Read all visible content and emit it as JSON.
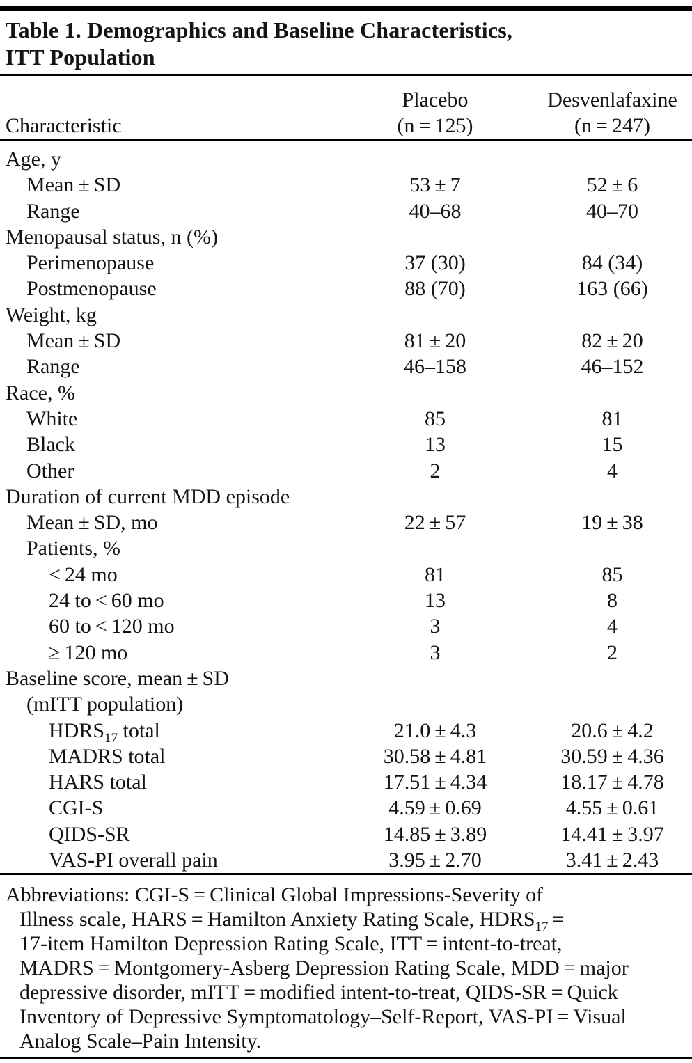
{
  "page": {
    "background": "#ffffff",
    "text_color": "#141414",
    "rule_color": "#000000"
  },
  "title": {
    "line1": "Table 1. Demographics and Baseline Characteristics,",
    "line2": "ITT Population"
  },
  "header": {
    "characteristic_label": "Characteristic",
    "columns": [
      {
        "name": "Placebo",
        "n_label": "(n = 125)"
      },
      {
        "name": "Desvenlafaxine",
        "n_label": "(n = 247)"
      }
    ]
  },
  "table": {
    "rows": [
      {
        "label": "Age, y",
        "indent": 0,
        "placebo": "",
        "desvenlafaxine": ""
      },
      {
        "label": "Mean ± SD",
        "indent": 1,
        "placebo": "53 ± 7",
        "desvenlafaxine": "52 ± 6"
      },
      {
        "label": "Range",
        "indent": 1,
        "placebo": "40–68",
        "desvenlafaxine": "40–70"
      },
      {
        "label": "Menopausal status, n (%)",
        "indent": 0,
        "placebo": "",
        "desvenlafaxine": ""
      },
      {
        "label": "Perimenopause",
        "indent": 1,
        "placebo": "37 (30)",
        "desvenlafaxine": "84 (34)"
      },
      {
        "label": "Postmenopause",
        "indent": 1,
        "placebo": "88 (70)",
        "desvenlafaxine": "163 (66)"
      },
      {
        "label": "Weight, kg",
        "indent": 0,
        "placebo": "",
        "desvenlafaxine": ""
      },
      {
        "label": "Mean ± SD",
        "indent": 1,
        "placebo": "81 ± 20",
        "desvenlafaxine": "82 ± 20"
      },
      {
        "label": "Range",
        "indent": 1,
        "placebo": "46–158",
        "desvenlafaxine": "46–152"
      },
      {
        "label": "Race, %",
        "indent": 0,
        "placebo": "",
        "desvenlafaxine": ""
      },
      {
        "label": "White",
        "indent": 1,
        "placebo": "85",
        "desvenlafaxine": "81"
      },
      {
        "label": "Black",
        "indent": 1,
        "placebo": "13",
        "desvenlafaxine": "15"
      },
      {
        "label": "Other",
        "indent": 1,
        "placebo": "2",
        "desvenlafaxine": "4"
      },
      {
        "label": "Duration of current MDD episode",
        "indent": 0,
        "placebo": "",
        "desvenlafaxine": ""
      },
      {
        "label": "Mean ± SD, mo",
        "indent": 1,
        "placebo": "22 ± 57",
        "desvenlafaxine": "19 ± 38"
      },
      {
        "label": "Patients, %",
        "indent": 1,
        "placebo": "",
        "desvenlafaxine": ""
      },
      {
        "label": "< 24 mo",
        "indent": 2,
        "placebo": "81",
        "desvenlafaxine": "85"
      },
      {
        "label": "24 to < 60 mo",
        "indent": 2,
        "placebo": "13",
        "desvenlafaxine": "8"
      },
      {
        "label": "60 to < 120 mo",
        "indent": 2,
        "placebo": "3",
        "desvenlafaxine": "4"
      },
      {
        "label": "≥ 120 mo",
        "indent": 2,
        "placebo": "3",
        "desvenlafaxine": "2"
      },
      {
        "label": "Baseline score, mean ± SD",
        "indent": 0,
        "placebo": "",
        "desvenlafaxine": ""
      },
      {
        "label": "(mITT population)",
        "indent": 1,
        "placebo": "",
        "desvenlafaxine": ""
      },
      {
        "label": "HDRS",
        "label_sub": "17",
        "label_rest": " total",
        "indent": 2,
        "placebo": "21.0 ± 4.3",
        "desvenlafaxine": "20.6 ± 4.2"
      },
      {
        "label": "MADRS total",
        "indent": 2,
        "placebo": "30.58 ± 4.81",
        "desvenlafaxine": "30.59 ± 4.36"
      },
      {
        "label": "HARS total",
        "indent": 2,
        "placebo": "17.51 ± 4.34",
        "desvenlafaxine": "18.17 ± 4.78"
      },
      {
        "label": "CGI-S",
        "indent": 2,
        "placebo": "4.59 ± 0.69",
        "desvenlafaxine": "4.55 ± 0.61"
      },
      {
        "label": "QIDS-SR",
        "indent": 2,
        "placebo": "14.85 ± 3.89",
        "desvenlafaxine": "14.41 ± 3.97"
      },
      {
        "label": "VAS-PI overall pain",
        "indent": 2,
        "placebo": "3.95 ± 2.70",
        "desvenlafaxine": "3.41 ± 2.43"
      }
    ]
  },
  "footnote": {
    "lines": [
      {
        "text": "Abbreviations: CGI-S = Clinical Global Impressions-Severity of",
        "indent": false
      },
      {
        "text": "Illness scale, HARS = Hamilton Anxiety Rating Scale, HDRS",
        "sub": "17",
        "rest": " =",
        "indent": true
      },
      {
        "text": "17-item Hamilton Depression Rating Scale, ITT = intent-to-treat,",
        "indent": true
      },
      {
        "text": "MADRS = Montgomery-Asberg Depression Rating Scale, MDD = major",
        "indent": true
      },
      {
        "text": "depressive disorder, mITT = modified intent-to-treat, QIDS-SR = Quick",
        "indent": true
      },
      {
        "text": "Inventory of Depressive Symptomatology–Self-Report, VAS-PI = Visual",
        "indent": true
      },
      {
        "text": "Analog Scale–Pain Intensity.",
        "indent": true
      }
    ]
  }
}
